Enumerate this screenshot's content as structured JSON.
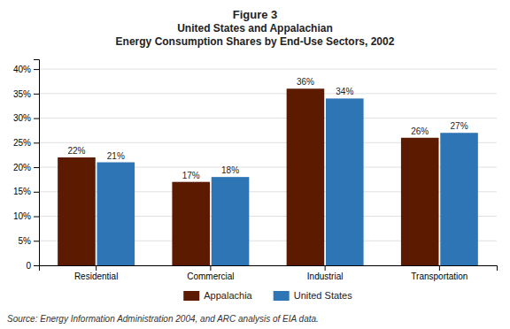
{
  "chart_data": {
    "type": "bar",
    "title": [
      "Figure 3",
      "United States and Appalachian",
      "Energy Consumption Shares by End-Use Sectors, 2002"
    ],
    "categories": [
      "Residential",
      "Commercial",
      "Industrial",
      "Transportation"
    ],
    "series": [
      {
        "name": "Appalachia",
        "color": "#5c1a00",
        "values": [
          22,
          17,
          36,
          26
        ],
        "value_labels": [
          "22%",
          "17%",
          "36%",
          "26%"
        ]
      },
      {
        "name": "United States",
        "color": "#2e75b6",
        "values": [
          21,
          18,
          34,
          27
        ],
        "value_labels": [
          "21%",
          "18%",
          "34%",
          "27%"
        ]
      }
    ],
    "ylim": [
      0,
      42
    ],
    "yticks": [
      0,
      {
        "value": 5,
        "label": "5%"
      },
      {
        "value": 10,
        "label": "10%"
      },
      {
        "value": 15,
        "label": "15%"
      },
      {
        "value": 20,
        "label": "20%"
      },
      {
        "value": 25,
        "label": "25%"
      },
      {
        "value": 30,
        "label": "30%"
      },
      {
        "value": 35,
        "label": "35%"
      },
      {
        "value": 40,
        "label": "40%"
      }
    ],
    "grid": true,
    "legend": "bottom",
    "data_labels": true,
    "annotations": [
      "Source: Energy Information Administration 2004, and ARC analysis of EIA data."
    ]
  }
}
